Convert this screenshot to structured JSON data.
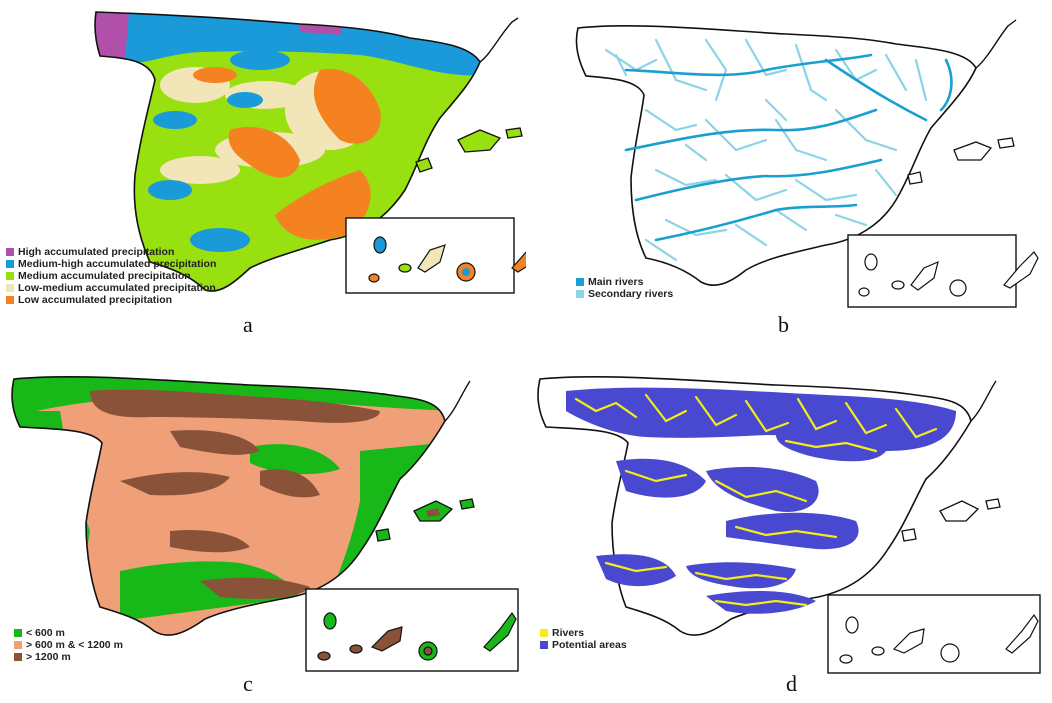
{
  "colors": {
    "high": "#b050a8",
    "medium_high": "#1a9ad8",
    "medium": "#98e010",
    "low_medium": "#f2e6b8",
    "low": "#f58220",
    "main_river": "#1aa0d0",
    "secondary_river": "#8ad4e8",
    "elev_low": "#18b818",
    "elev_mid": "#f0a078",
    "elev_high": "#8a5238",
    "rivers_yellow": "#f2ec18",
    "potential": "#4848d0"
  },
  "panels": [
    {
      "letter": "a",
      "legend": [
        {
          "label": "High accumulated precipitation",
          "color": "#b050a8"
        },
        {
          "label": "Medium-high accumulated precipitation",
          "color": "#1a9ad8"
        },
        {
          "label": "Medium accumulated precipitation",
          "color": "#98e010"
        },
        {
          "label": "Low-medium accumulated precipitation",
          "color": "#f2e6b8"
        },
        {
          "label": "Low accumulated precipitation",
          "color": "#f58220"
        }
      ]
    },
    {
      "letter": "b",
      "legend": [
        {
          "label": "Main rivers",
          "color": "#1aa0d0"
        },
        {
          "label": "Secondary rivers",
          "color": "#8ad4e8"
        }
      ]
    },
    {
      "letter": "c",
      "legend": [
        {
          "label": "< 600 m",
          "color": "#18b818"
        },
        {
          "label": "> 600 m & < 1200 m",
          "color": "#f0a078"
        },
        {
          "label": "> 1200 m",
          "color": "#8a5238"
        }
      ]
    },
    {
      "letter": "d",
      "legend": [
        {
          "label": "Rivers",
          "color": "#f2ec18"
        },
        {
          "label": "Potential areas",
          "color": "#4848d0"
        }
      ]
    }
  ]
}
